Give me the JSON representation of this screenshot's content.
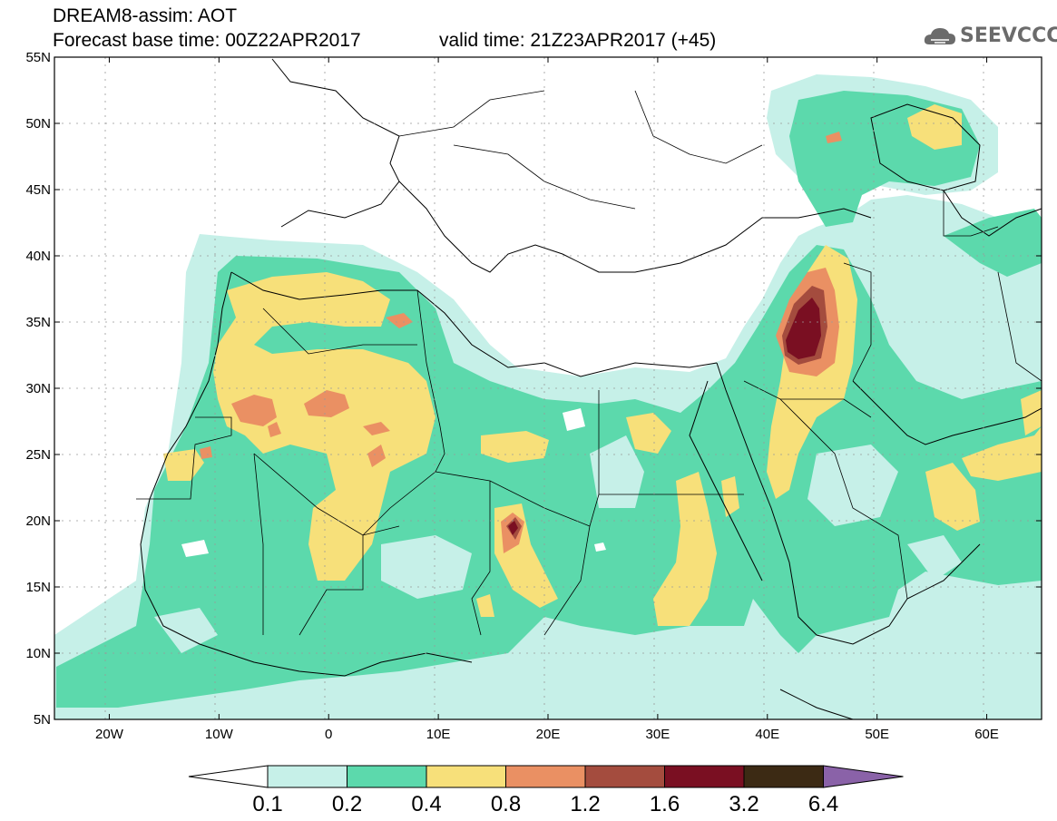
{
  "header": {
    "title": "DREAM8-assim: AOT",
    "base_time": "Forecast base time: 00Z22APR2017",
    "valid_time": "valid time: 21Z23APR2017 (+45)"
  },
  "logo": {
    "text": "SEEVCCC",
    "icon": "cloud-logo-icon"
  },
  "map": {
    "lon_range": [
      -25,
      65
    ],
    "lat_range": [
      5,
      55
    ],
    "lat_ticks": [
      {
        "value": 55,
        "label": "55N"
      },
      {
        "value": 50,
        "label": "50N"
      },
      {
        "value": 45,
        "label": "45N"
      },
      {
        "value": 40,
        "label": "40N"
      },
      {
        "value": 35,
        "label": "35N"
      },
      {
        "value": 30,
        "label": "30N"
      },
      {
        "value": 25,
        "label": "25N"
      },
      {
        "value": 20,
        "label": "20N"
      },
      {
        "value": 15,
        "label": "15N"
      },
      {
        "value": 10,
        "label": "10N"
      },
      {
        "value": 5,
        "label": "5N"
      }
    ],
    "lon_ticks": [
      {
        "value": -20,
        "label": "20W"
      },
      {
        "value": -10,
        "label": "10W"
      },
      {
        "value": 0,
        "label": "0"
      },
      {
        "value": 10,
        "label": "10E"
      },
      {
        "value": 20,
        "label": "20E"
      },
      {
        "value": 30,
        "label": "30E"
      },
      {
        "value": 40,
        "label": "40E"
      },
      {
        "value": 50,
        "label": "50E"
      },
      {
        "value": 60,
        "label": "60E"
      }
    ]
  },
  "colorbar": {
    "levels": [
      "0.1",
      "0.2",
      "0.4",
      "0.8",
      "1.2",
      "1.6",
      "3.2",
      "6.4"
    ],
    "colors": [
      "#ffffff",
      "#c6f0e8",
      "#5cd9ac",
      "#f7e07a",
      "#ea9063",
      "#a44c3e",
      "#7a0f22",
      "#3c2a14",
      "#8a62a8"
    ]
  }
}
